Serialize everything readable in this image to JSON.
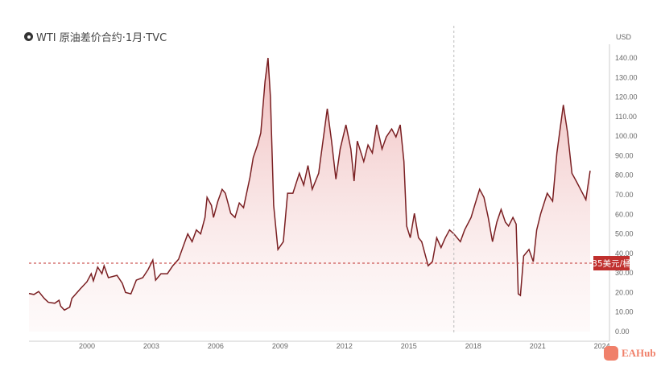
{
  "title": "WTI 原油差价合约·1月·TVC",
  "logo_text": "EAHub",
  "chart_data": {
    "type": "area",
    "title": "WTI 原油差价合约·1月·TVC",
    "ylabel": "USD",
    "xlim": [
      1997.3,
      2024.35
    ],
    "ylim": [
      0,
      140
    ],
    "x_ticks": [
      2000,
      2003,
      2006,
      2009,
      2012,
      2015,
      2018,
      2021,
      2024
    ],
    "y_ticks": [
      "0.00",
      "10.00",
      "20.00",
      "30.00",
      "40.00",
      "50.00",
      "60.00",
      "70.00",
      "80.00",
      "90.00",
      "100.00",
      "110.00",
      "120.00",
      "130.00",
      "140.00"
    ],
    "line_color": "#7a1f22",
    "fill_color": "#f2c4c4",
    "reference_line": {
      "value": 35,
      "label": "35美元/桶",
      "color": "#c0302e"
    },
    "vertical_marker": 2017.1,
    "points": [
      [
        1997.3,
        19.5
      ],
      [
        1997.53,
        19
      ],
      [
        1997.75,
        20.5
      ],
      [
        1998.01,
        17
      ],
      [
        1998.2,
        15
      ],
      [
        1998.5,
        14.5
      ],
      [
        1998.7,
        16
      ],
      [
        1998.78,
        13
      ],
      [
        1998.95,
        11
      ],
      [
        1999.2,
        12.5
      ],
      [
        1999.3,
        17
      ],
      [
        1999.7,
        22
      ],
      [
        2000.0,
        25.5
      ],
      [
        2000.2,
        29.6
      ],
      [
        2000.3,
        26
      ],
      [
        2000.5,
        33
      ],
      [
        2000.7,
        29.6
      ],
      [
        2000.8,
        33.7
      ],
      [
        2001.0,
        27.6
      ],
      [
        2001.4,
        28.8
      ],
      [
        2001.65,
        24.7
      ],
      [
        2001.8,
        20
      ],
      [
        2002.05,
        19.3
      ],
      [
        2002.3,
        26.3
      ],
      [
        2002.6,
        27.6
      ],
      [
        2002.85,
        31.7
      ],
      [
        2003.07,
        36.6
      ],
      [
        2003.2,
        26.3
      ],
      [
        2003.45,
        29.6
      ],
      [
        2003.75,
        29.6
      ],
      [
        2004.0,
        33.7
      ],
      [
        2004.27,
        37
      ],
      [
        2004.5,
        44
      ],
      [
        2004.7,
        50
      ],
      [
        2004.9,
        46
      ],
      [
        2005.1,
        52
      ],
      [
        2005.3,
        50
      ],
      [
        2005.5,
        58.4
      ],
      [
        2005.6,
        68.7
      ],
      [
        2005.8,
        64.6
      ],
      [
        2005.9,
        58.4
      ],
      [
        2006.1,
        66.7
      ],
      [
        2006.3,
        72.8
      ],
      [
        2006.45,
        70.8
      ],
      [
        2006.7,
        60.5
      ],
      [
        2006.9,
        58.4
      ],
      [
        2007.1,
        65.8
      ],
      [
        2007.3,
        63.4
      ],
      [
        2007.6,
        79
      ],
      [
        2007.75,
        89
      ],
      [
        2007.95,
        95.5
      ],
      [
        2008.1,
        101.6
      ],
      [
        2008.3,
        128
      ],
      [
        2008.44,
        140
      ],
      [
        2008.55,
        120
      ],
      [
        2008.7,
        64.6
      ],
      [
        2008.9,
        42
      ],
      [
        2009.15,
        46
      ],
      [
        2009.35,
        70.8
      ],
      [
        2009.6,
        70.8
      ],
      [
        2009.9,
        81
      ],
      [
        2010.1,
        75
      ],
      [
        2010.3,
        85
      ],
      [
        2010.5,
        72.8
      ],
      [
        2010.8,
        81
      ],
      [
        2010.95,
        93.4
      ],
      [
        2011.2,
        114
      ],
      [
        2011.4,
        97.5
      ],
      [
        2011.6,
        78
      ],
      [
        2011.8,
        93.4
      ],
      [
        2012.07,
        105.8
      ],
      [
        2012.3,
        93.4
      ],
      [
        2012.45,
        77
      ],
      [
        2012.6,
        97.5
      ],
      [
        2012.9,
        87
      ],
      [
        2013.1,
        95.5
      ],
      [
        2013.3,
        91.4
      ],
      [
        2013.5,
        105.8
      ],
      [
        2013.75,
        93.4
      ],
      [
        2013.95,
        99.6
      ],
      [
        2014.2,
        103.7
      ],
      [
        2014.4,
        99.6
      ],
      [
        2014.6,
        105.8
      ],
      [
        2014.77,
        87
      ],
      [
        2014.9,
        54
      ],
      [
        2015.07,
        48
      ],
      [
        2015.26,
        60.5
      ],
      [
        2015.45,
        48
      ],
      [
        2015.6,
        46
      ],
      [
        2015.9,
        33.7
      ],
      [
        2016.1,
        35.8
      ],
      [
        2016.3,
        48
      ],
      [
        2016.5,
        43
      ],
      [
        2016.7,
        48
      ],
      [
        2016.9,
        52
      ],
      [
        2017.1,
        50
      ],
      [
        2017.4,
        46
      ],
      [
        2017.6,
        52
      ],
      [
        2017.9,
        58.4
      ],
      [
        2018.07,
        64.6
      ],
      [
        2018.3,
        72.8
      ],
      [
        2018.5,
        68.7
      ],
      [
        2018.7,
        58.4
      ],
      [
        2018.9,
        46
      ],
      [
        2019.1,
        56
      ],
      [
        2019.3,
        62.5
      ],
      [
        2019.5,
        56
      ],
      [
        2019.65,
        54
      ],
      [
        2019.85,
        58.4
      ],
      [
        2020.0,
        55
      ],
      [
        2020.1,
        19.3
      ],
      [
        2020.2,
        18.5
      ],
      [
        2020.35,
        38.7
      ],
      [
        2020.6,
        42
      ],
      [
        2020.8,
        35.8
      ],
      [
        2020.96,
        52
      ],
      [
        2021.15,
        60.5
      ],
      [
        2021.45,
        70.8
      ],
      [
        2021.7,
        66.7
      ],
      [
        2021.9,
        91.4
      ],
      [
        2022.2,
        116
      ],
      [
        2022.4,
        101.6
      ],
      [
        2022.6,
        81
      ],
      [
        2022.8,
        77
      ],
      [
        2023.0,
        72.8
      ],
      [
        2023.25,
        67.5
      ],
      [
        2023.45,
        82.3
      ]
    ]
  }
}
